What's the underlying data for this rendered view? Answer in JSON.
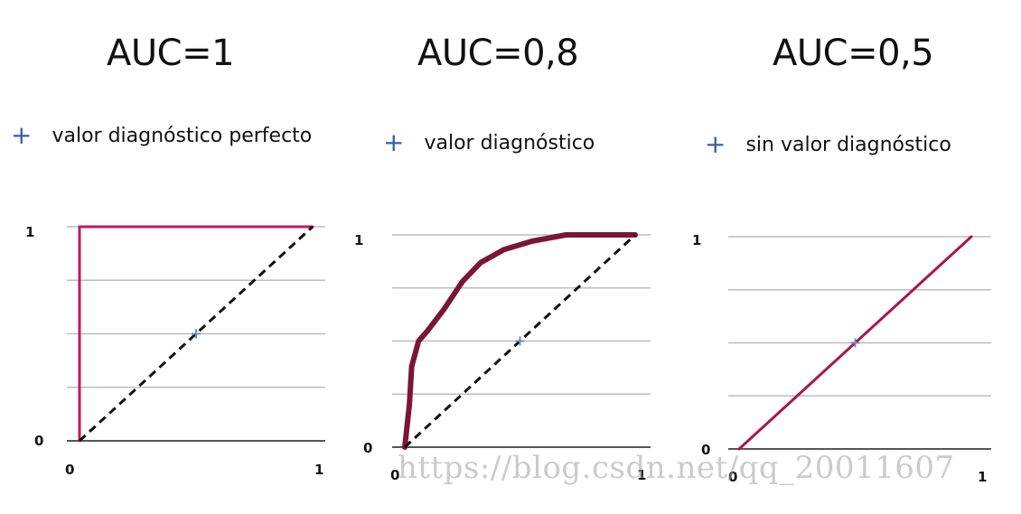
{
  "chart_data": [
    {
      "type": "line",
      "title": "AUC=1",
      "subtitle": "valor diagnóstico perfecto",
      "xlim": [
        0,
        1
      ],
      "ylim": [
        0,
        1
      ],
      "x_ticks": [
        "0",
        "1"
      ],
      "y_ticks": [
        "0",
        "1"
      ],
      "grid": true,
      "series": [
        {
          "style": "solid",
          "color": "#c2185b",
          "x": [
            0,
            0,
            1
          ],
          "y": [
            0,
            1,
            1
          ]
        },
        {
          "style": "dashed",
          "color": "#111111",
          "x": [
            0,
            1
          ],
          "y": [
            0,
            1
          ]
        }
      ],
      "marker": {
        "x": 0.5,
        "y": 0.5
      }
    },
    {
      "type": "line",
      "title": "AUC=0,8",
      "subtitle": "valor diagnóstico",
      "xlim": [
        0,
        1
      ],
      "ylim": [
        0,
        1
      ],
      "x_ticks": [
        "0",
        "1"
      ],
      "y_ticks": [
        "0",
        "1"
      ],
      "grid": true,
      "series": [
        {
          "style": "solid-thick",
          "color": "#7b1538",
          "x": [
            0,
            0.02,
            0.03,
            0.06,
            0.1,
            0.17,
            0.25,
            0.33,
            0.43,
            0.55,
            0.7,
            0.85,
            0.94,
            1.0
          ],
          "y": [
            0,
            0.2,
            0.38,
            0.5,
            0.55,
            0.65,
            0.78,
            0.87,
            0.93,
            0.97,
            1.0,
            1.0,
            1.0,
            1.0
          ]
        },
        {
          "style": "dashed",
          "color": "#111111",
          "x": [
            0,
            1
          ],
          "y": [
            0,
            1
          ]
        }
      ],
      "marker": {
        "x": 0.5,
        "y": 0.5
      }
    },
    {
      "type": "line",
      "title": "AUC=0,5",
      "subtitle": "sin valor diagnóstico",
      "xlim": [
        0,
        1
      ],
      "ylim": [
        0,
        1
      ],
      "x_ticks": [
        "0",
        "1"
      ],
      "y_ticks": [
        "0",
        "1"
      ],
      "grid": true,
      "series": [
        {
          "style": "solid",
          "color": "#a8164f",
          "x": [
            0,
            1
          ],
          "y": [
            0,
            1
          ]
        }
      ],
      "marker": {
        "x": 0.5,
        "y": 0.5
      }
    }
  ],
  "watermark": "https://blog.csdn.net/qq_20011607"
}
